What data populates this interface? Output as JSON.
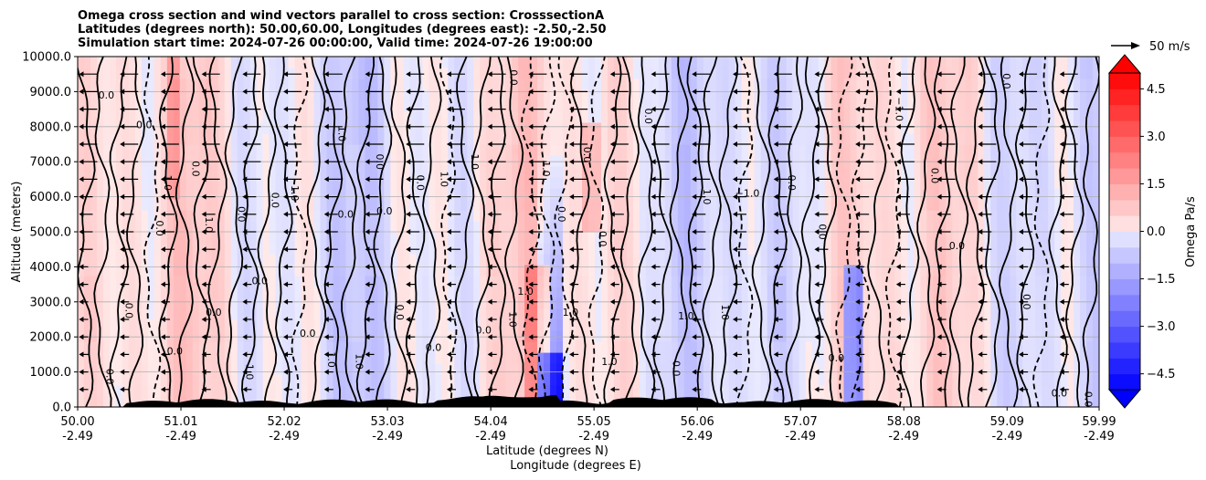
{
  "chart_data": {
    "type": "heatmap",
    "title_lines": [
      "Omega cross section and wind vectors parallel to cross section: CrosssectionA",
      "Latitudes (degrees north): 50.00,60.00, Longitudes (degrees east): -2.50,-2.50",
      "Simulation start time: 2024-07-26 00:00:00, Valid time: 2024-07-26 19:00:00"
    ],
    "ylabel": "Altitude (meters)",
    "xlabel_lines": [
      "Latitude (degrees N)",
      "Longitude (degrees E)"
    ],
    "ylim": [
      0,
      10000
    ],
    "xlim": [
      50.0,
      59.99
    ],
    "y_ticks": [
      0,
      1000,
      2000,
      3000,
      4000,
      5000,
      6000,
      7000,
      8000,
      9000,
      10000
    ],
    "y_tick_labels": [
      "0.0",
      "1000.0",
      "2000.0",
      "3000.0",
      "4000.0",
      "5000.0",
      "6000.0",
      "7000.0",
      "8000.0",
      "9000.0",
      "10000.0"
    ],
    "x_ticks": [
      50.0,
      51.01,
      52.02,
      53.03,
      54.04,
      55.05,
      56.06,
      57.07,
      58.08,
      59.09,
      59.99
    ],
    "x_tick_lat_labels": [
      "50.00",
      "51.01",
      "52.02",
      "53.03",
      "54.04",
      "55.05",
      "56.06",
      "57.07",
      "58.08",
      "59.09",
      "59.99"
    ],
    "x_tick_lon_labels": [
      "-2.49",
      "-2.49",
      "-2.49",
      "-2.49",
      "-2.49",
      "-2.49",
      "-2.49",
      "-2.49",
      "-2.49",
      "-2.49",
      "-2.49"
    ],
    "grid": true,
    "colorbar": {
      "label": "Omega Pa/s",
      "vmin": -5.0,
      "vmax": 5.0,
      "step": 0.5,
      "extend": "both",
      "ticks": [
        4.5,
        3.0,
        1.5,
        0.0,
        -1.5,
        -3.0,
        -4.5
      ],
      "tick_labels": [
        "4.5",
        "3.0",
        "1.5",
        "0.0",
        "−1.5",
        "−3.0",
        "−4.5"
      ],
      "positive_color": "#ff0000",
      "negative_color": "#0000ff"
    },
    "wind_key": {
      "value": 50,
      "label": "50 m/s"
    },
    "contour_levels": [
      -1.0,
      0.0,
      1.0
    ],
    "contour_labels": [
      {
        "lat": 50.28,
        "alt": 8800,
        "text": "0.0"
      },
      {
        "lat": 50.28,
        "alt": 870,
        "text": "0.0"
      },
      {
        "lat": 50.47,
        "alt": 2750,
        "text": "0.0"
      },
      {
        "lat": 50.65,
        "alt": 7950,
        "text": "0.0"
      },
      {
        "lat": 50.77,
        "alt": 5100,
        "text": "0.0"
      },
      {
        "lat": 50.85,
        "alt": 6400,
        "text": "1.0"
      },
      {
        "lat": 50.95,
        "alt": 1500,
        "text": "0.0"
      },
      {
        "lat": 51.12,
        "alt": 6800,
        "text": "0.0"
      },
      {
        "lat": 51.25,
        "alt": 5200,
        "text": "1.0"
      },
      {
        "lat": 51.33,
        "alt": 2600,
        "text": "0.0"
      },
      {
        "lat": 51.57,
        "alt": 5500,
        "text": "0.0"
      },
      {
        "lat": 51.65,
        "alt": 1000,
        "text": "1.0"
      },
      {
        "lat": 51.78,
        "alt": 3500,
        "text": "0.0"
      },
      {
        "lat": 51.9,
        "alt": 5900,
        "text": "0.0"
      },
      {
        "lat": 52.09,
        "alt": 6100,
        "text": "1.0"
      },
      {
        "lat": 52.25,
        "alt": 2000,
        "text": "0.0"
      },
      {
        "lat": 52.45,
        "alt": 1350,
        "text": "1.0"
      },
      {
        "lat": 52.55,
        "alt": 7800,
        "text": "1.0"
      },
      {
        "lat": 52.62,
        "alt": 5400,
        "text": "0.0"
      },
      {
        "lat": 52.72,
        "alt": 1300,
        "text": "1.0"
      },
      {
        "lat": 52.92,
        "alt": 7000,
        "text": "0.0"
      },
      {
        "lat": 53.0,
        "alt": 5500,
        "text": "0.0"
      },
      {
        "lat": 53.12,
        "alt": 2700,
        "text": "0.0"
      },
      {
        "lat": 53.32,
        "alt": 6400,
        "text": "0.0"
      },
      {
        "lat": 53.48,
        "alt": 1600,
        "text": "0.0"
      },
      {
        "lat": 53.55,
        "alt": 6500,
        "text": "1.0"
      },
      {
        "lat": 53.85,
        "alt": 7000,
        "text": "1.0"
      },
      {
        "lat": 53.97,
        "alt": 2100,
        "text": "0.0"
      },
      {
        "lat": 54.23,
        "alt": 9400,
        "text": "0.0"
      },
      {
        "lat": 54.22,
        "alt": 2500,
        "text": "1.0"
      },
      {
        "lat": 54.38,
        "alt": 3200,
        "text": "1.0"
      },
      {
        "lat": 54.55,
        "alt": 6800,
        "text": "1.0"
      },
      {
        "lat": 54.7,
        "alt": 5500,
        "text": "0.0"
      },
      {
        "lat": 54.82,
        "alt": 2600,
        "text": "1.0"
      },
      {
        "lat": 54.95,
        "alt": 7200,
        "text": "0.0"
      },
      {
        "lat": 55.1,
        "alt": 4800,
        "text": "0.0"
      },
      {
        "lat": 55.2,
        "alt": 1200,
        "text": "1.0"
      },
      {
        "lat": 55.55,
        "alt": 8300,
        "text": "0.0"
      },
      {
        "lat": 55.82,
        "alt": 1100,
        "text": "0.0"
      },
      {
        "lat": 55.95,
        "alt": 2500,
        "text": "1.0"
      },
      {
        "lat": 56.12,
        "alt": 6000,
        "text": "1.0"
      },
      {
        "lat": 56.3,
        "alt": 2700,
        "text": "1.0"
      },
      {
        "lat": 56.55,
        "alt": 6000,
        "text": "−1.0"
      },
      {
        "lat": 56.95,
        "alt": 6400,
        "text": "0.0"
      },
      {
        "lat": 57.25,
        "alt": 5000,
        "text": "0.0"
      },
      {
        "lat": 57.42,
        "alt": 1300,
        "text": "0.0"
      },
      {
        "lat": 58.0,
        "alt": 8500,
        "text": "−1.0"
      },
      {
        "lat": 58.35,
        "alt": 6600,
        "text": "0.0"
      },
      {
        "lat": 58.6,
        "alt": 4500,
        "text": "0.0"
      },
      {
        "lat": 59.05,
        "alt": 9300,
        "text": "0.0"
      },
      {
        "lat": 59.25,
        "alt": 3000,
        "text": "0.0"
      },
      {
        "lat": 59.6,
        "alt": 300,
        "text": "0.0"
      },
      {
        "lat": 59.85,
        "alt": 220,
        "text": "0.0"
      }
    ]
  }
}
